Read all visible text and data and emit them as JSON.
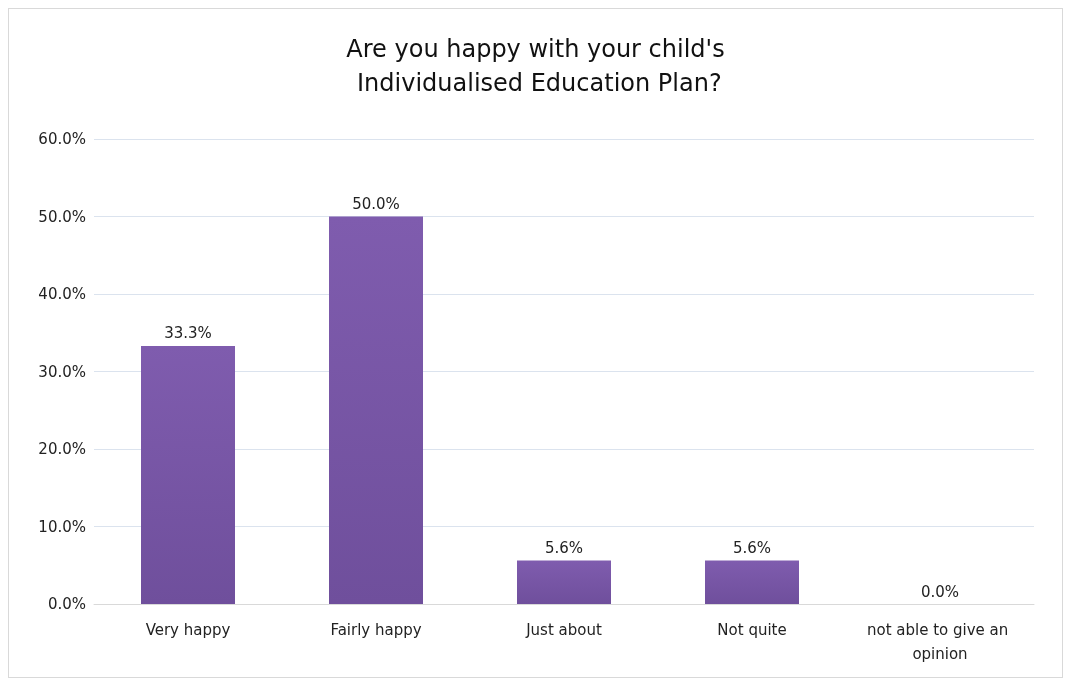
{
  "chart_data": {
    "type": "bar",
    "title": "Are you happy with your child's Individualised Education Plan?",
    "categories": [
      "Very happy",
      "Fairly happy",
      "Just about",
      "Not quite",
      "not able to give an opinion"
    ],
    "values": [
      33.3,
      50.0,
      5.6,
      5.6,
      0.0
    ],
    "value_labels": [
      "33.3%",
      "50.0%",
      "5.6%",
      "5.6%",
      "0.0%"
    ],
    "color": "#6f4f9c",
    "ylim": [
      0,
      60
    ],
    "yticks": [
      {
        "value": 0,
        "label": "0.0%"
      },
      {
        "value": 10,
        "label": "10.0%"
      },
      {
        "value": 20,
        "label": "20.0%"
      },
      {
        "value": 30,
        "label": "30.0%"
      },
      {
        "value": 40,
        "label": "40.0%"
      },
      {
        "value": 50,
        "label": "50.0%"
      },
      {
        "value": 60,
        "label": "60.0%"
      }
    ],
    "grid": "y"
  }
}
